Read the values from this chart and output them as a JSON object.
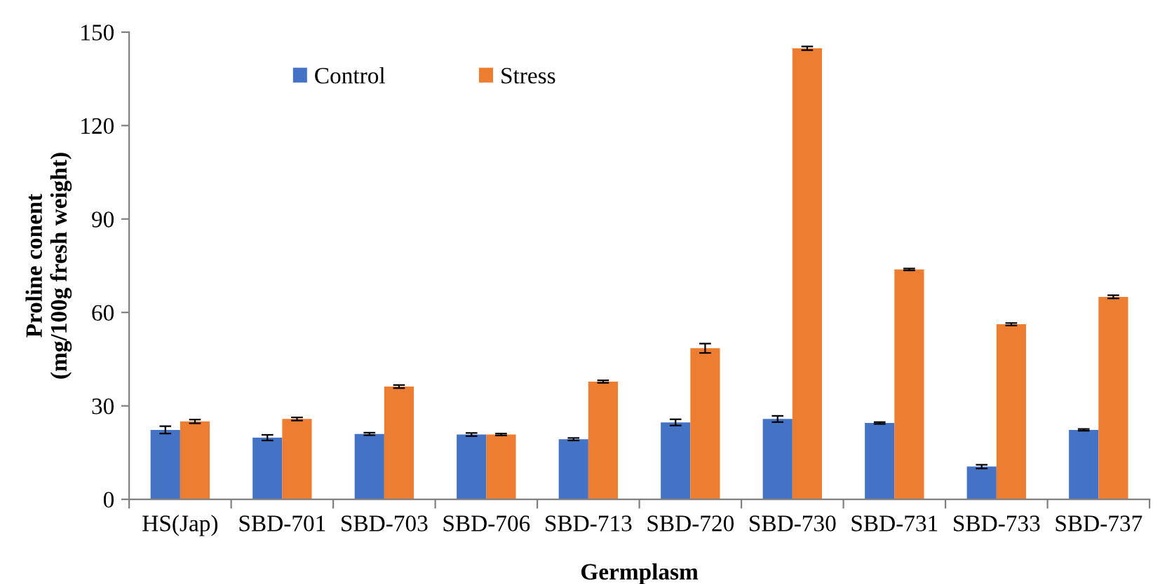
{
  "chart_data": {
    "type": "bar",
    "xlabel": "Germplasm",
    "ylabel": "Proline conent\n(mg/100g fresh weight)",
    "categories": [
      "HS(Jap)",
      "SBD-701",
      "SBD-703",
      "SBD-706",
      "SBD-713",
      "SBD-720",
      "SBD-730",
      "SBD-731",
      "SBD-733",
      "SBD-737"
    ],
    "series": [
      {
        "name": "Control",
        "color": "#4472c4",
        "values": [
          22.3,
          19.8,
          21.0,
          20.8,
          19.3,
          24.7,
          25.8,
          24.5,
          10.5,
          22.3
        ],
        "errors": [
          1.2,
          0.9,
          0.4,
          0.5,
          0.4,
          1.0,
          1.0,
          0.3,
          0.6,
          0.3
        ]
      },
      {
        "name": "Stress",
        "color": "#ed7d31",
        "values": [
          25.0,
          25.8,
          36.2,
          20.8,
          37.8,
          48.5,
          144.8,
          73.8,
          56.2,
          65.0
        ],
        "errors": [
          0.6,
          0.5,
          0.5,
          0.3,
          0.4,
          1.5,
          0.6,
          0.3,
          0.4,
          0.5
        ]
      }
    ],
    "ylim": [
      0,
      150
    ],
    "yticks": [
      0,
      30,
      60,
      90,
      120,
      150
    ],
    "grid": false,
    "legend": "top left"
  }
}
